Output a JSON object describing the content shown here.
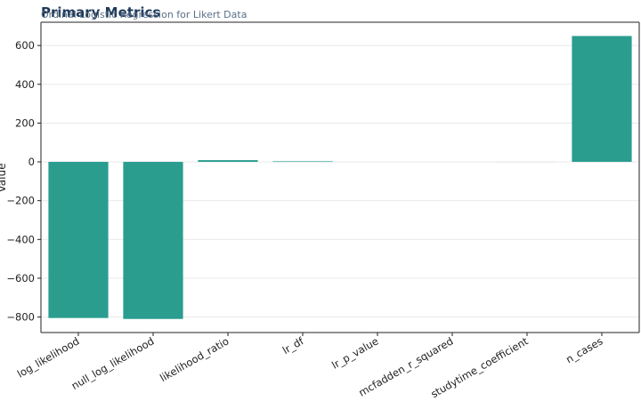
{
  "chart_data": {
    "type": "bar",
    "title": "Primary Metrics",
    "subtitle": "Ordinal Logistic Regression for Likert Data",
    "xlabel": "",
    "ylabel": "Value",
    "categories": [
      "log_likelihood",
      "null_log_likelihood",
      "likelihood_ratio",
      "lr_df",
      "lr_p_value",
      "mcfadden_r_squared",
      "studytime_coefficient",
      "n_cases"
    ],
    "values": [
      -805,
      -810,
      9,
      3,
      0.0,
      0.005,
      0.3,
      649
    ],
    "ylim": [
      -880,
      720
    ],
    "yticks": [
      600,
      400,
      200,
      0,
      -200,
      -400,
      -600,
      -800
    ],
    "ytick_labels": [
      "600",
      "400",
      "200",
      "0",
      "−200",
      "−400",
      "−600",
      "−800"
    ],
    "grid": true,
    "bar_color": "#2a9d8f"
  }
}
